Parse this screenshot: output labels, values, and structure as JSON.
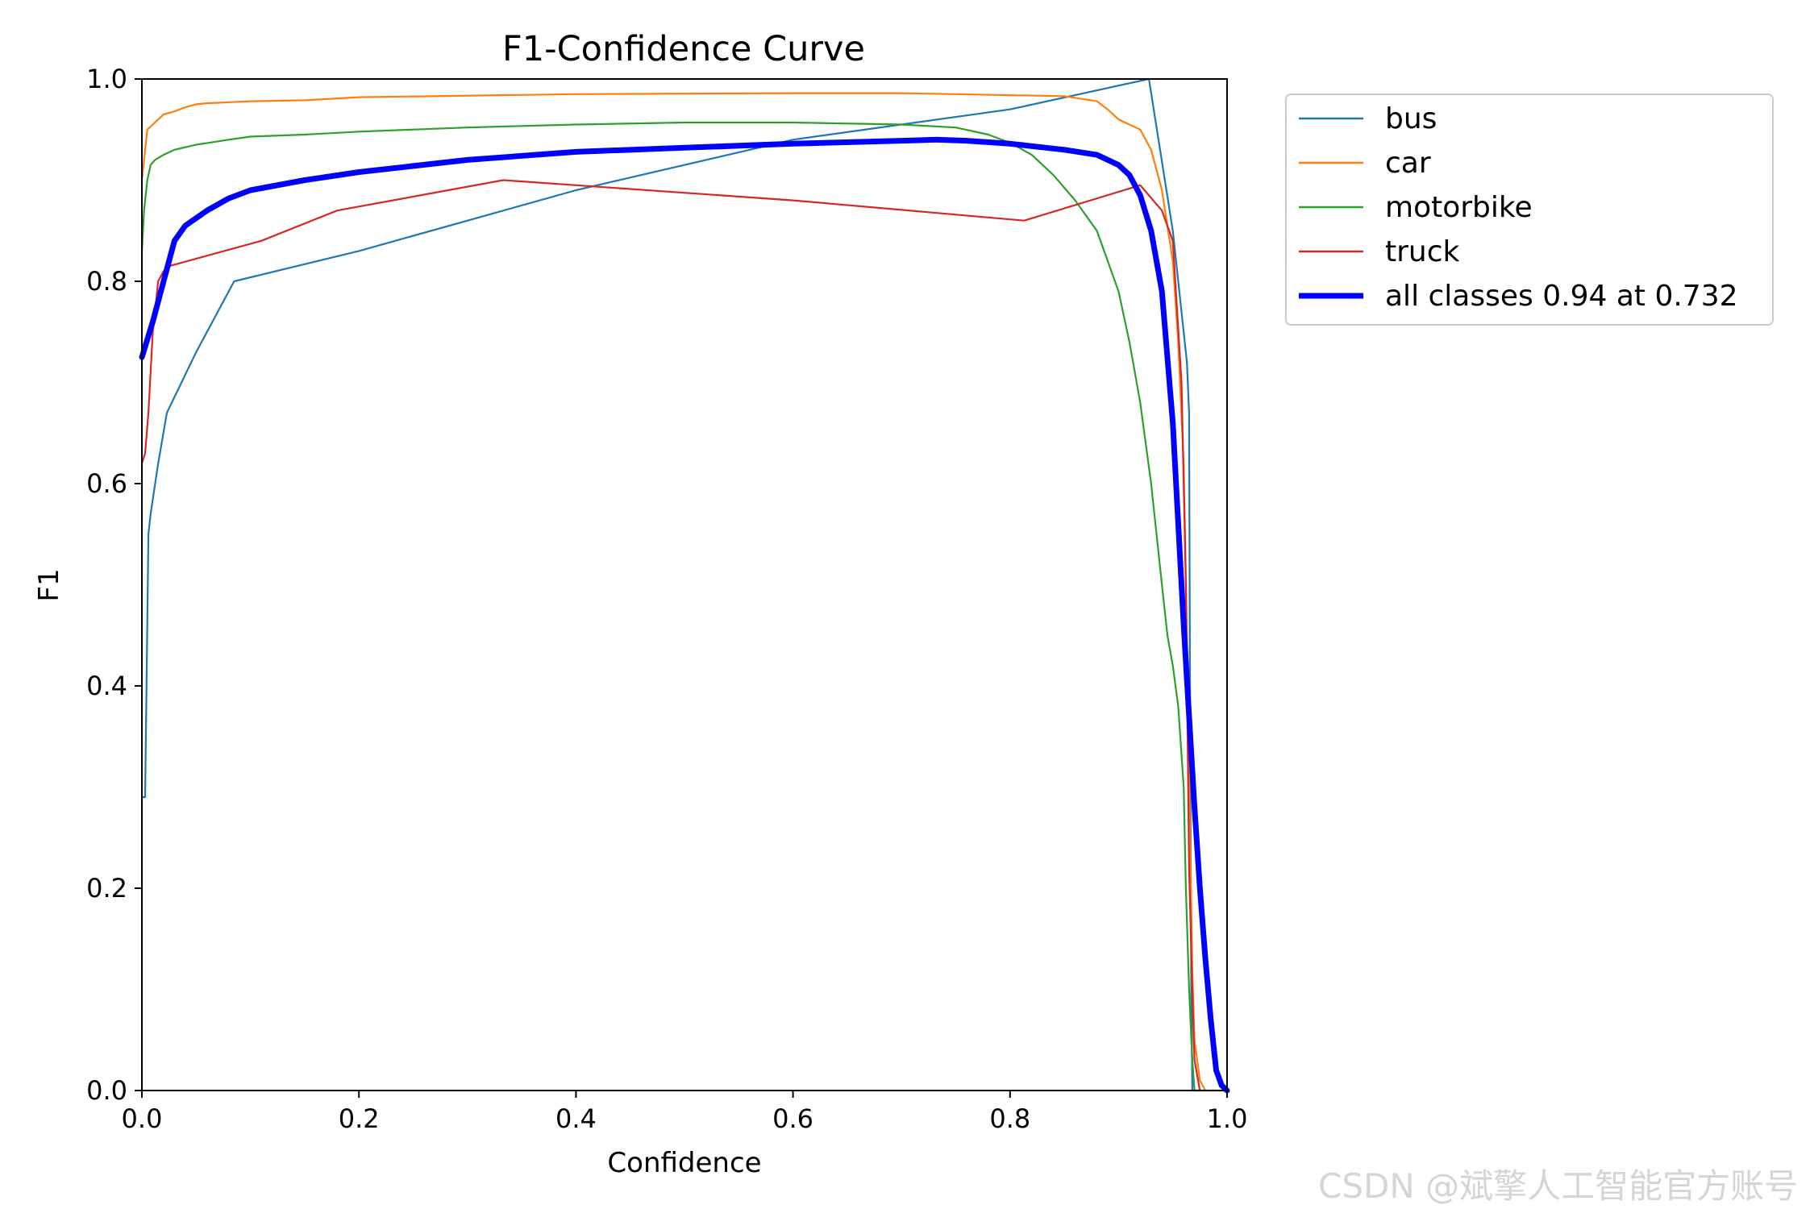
{
  "watermark": "CSDN @斌擎人工智能官方账号",
  "chart_data": {
    "type": "line",
    "title": "F1-Confidence Curve",
    "xlabel": "Confidence",
    "ylabel": "F1",
    "xlim": [
      0.0,
      1.0
    ],
    "ylim": [
      0.0,
      1.0
    ],
    "xticks": [
      "0.0",
      "0.2",
      "0.4",
      "0.6",
      "0.8",
      "1.0"
    ],
    "yticks": [
      "0.0",
      "0.2",
      "0.4",
      "0.6",
      "0.8",
      "1.0"
    ],
    "grid": false,
    "legend_position": "outside-top-right",
    "series": [
      {
        "name": "bus",
        "color": "#1f77b4",
        "width": "thin",
        "x": [
          0.0,
          0.003,
          0.006,
          0.008,
          0.015,
          0.023,
          0.05,
          0.085,
          0.2,
          0.4,
          0.6,
          0.8,
          0.928,
          0.95,
          0.963,
          0.965,
          0.966,
          0.967,
          0.968,
          0.98
        ],
        "y": [
          0.29,
          0.29,
          0.55,
          0.57,
          0.62,
          0.67,
          0.73,
          0.8,
          0.83,
          0.89,
          0.94,
          0.97,
          1.0,
          0.85,
          0.72,
          0.67,
          0.35,
          0.1,
          0.0,
          0.0
        ]
      },
      {
        "name": "car",
        "color": "#ff7f0e",
        "width": "thin",
        "x": [
          0.0,
          0.005,
          0.01,
          0.015,
          0.02,
          0.03,
          0.04,
          0.05,
          0.06,
          0.1,
          0.15,
          0.2,
          0.4,
          0.6,
          0.7,
          0.75,
          0.8,
          0.85,
          0.88,
          0.89,
          0.9,
          0.92,
          0.93,
          0.94,
          0.95,
          0.955,
          0.96,
          0.963,
          0.966,
          0.968,
          0.97,
          0.975,
          0.98,
          1.0
        ],
        "y": [
          0.9,
          0.95,
          0.955,
          0.96,
          0.965,
          0.968,
          0.972,
          0.975,
          0.976,
          0.978,
          0.979,
          0.982,
          0.985,
          0.986,
          0.986,
          0.985,
          0.984,
          0.983,
          0.978,
          0.97,
          0.96,
          0.95,
          0.93,
          0.89,
          0.82,
          0.74,
          0.62,
          0.45,
          0.25,
          0.12,
          0.05,
          0.01,
          0.0,
          0.0
        ]
      },
      {
        "name": "motorbike",
        "color": "#2ca02c",
        "width": "thin",
        "x": [
          0.0,
          0.002,
          0.005,
          0.008,
          0.012,
          0.02,
          0.03,
          0.05,
          0.08,
          0.1,
          0.15,
          0.2,
          0.3,
          0.4,
          0.5,
          0.6,
          0.7,
          0.75,
          0.78,
          0.8,
          0.82,
          0.84,
          0.86,
          0.88,
          0.9,
          0.91,
          0.92,
          0.93,
          0.935,
          0.94,
          0.945,
          0.95,
          0.955,
          0.96,
          0.962,
          0.965,
          0.968,
          0.97,
          0.975
        ],
        "y": [
          0.83,
          0.87,
          0.9,
          0.915,
          0.92,
          0.925,
          0.93,
          0.935,
          0.94,
          0.943,
          0.945,
          0.948,
          0.952,
          0.955,
          0.957,
          0.957,
          0.955,
          0.952,
          0.945,
          0.937,
          0.925,
          0.905,
          0.88,
          0.85,
          0.79,
          0.74,
          0.68,
          0.6,
          0.55,
          0.5,
          0.45,
          0.42,
          0.38,
          0.3,
          0.2,
          0.1,
          0.03,
          0.0,
          0.0
        ]
      },
      {
        "name": "truck",
        "color": "#d62728",
        "width": "thin",
        "x": [
          0.0,
          0.003,
          0.006,
          0.01,
          0.015,
          0.02,
          0.025,
          0.11,
          0.18,
          0.333,
          0.6,
          0.813,
          0.92,
          0.94,
          0.95,
          0.958,
          0.962,
          0.965,
          0.968,
          0.97,
          0.975
        ],
        "y": [
          0.62,
          0.63,
          0.67,
          0.75,
          0.8,
          0.81,
          0.815,
          0.84,
          0.87,
          0.9,
          0.88,
          0.86,
          0.895,
          0.87,
          0.84,
          0.7,
          0.5,
          0.22,
          0.1,
          0.03,
          0.0
        ]
      },
      {
        "name": "all classes 0.94 at 0.732",
        "color": "#0000ff",
        "width": "thick",
        "x": [
          0.0,
          0.01,
          0.02,
          0.03,
          0.04,
          0.06,
          0.08,
          0.1,
          0.15,
          0.2,
          0.3,
          0.4,
          0.5,
          0.6,
          0.7,
          0.732,
          0.76,
          0.8,
          0.85,
          0.88,
          0.9,
          0.91,
          0.92,
          0.93,
          0.94,
          0.95,
          0.96,
          0.965,
          0.97,
          0.975,
          0.98,
          0.985,
          0.99,
          0.995,
          1.0
        ],
        "y": [
          0.725,
          0.76,
          0.8,
          0.84,
          0.855,
          0.87,
          0.882,
          0.89,
          0.9,
          0.908,
          0.92,
          0.928,
          0.932,
          0.936,
          0.939,
          0.94,
          0.939,
          0.936,
          0.93,
          0.925,
          0.915,
          0.905,
          0.885,
          0.85,
          0.79,
          0.66,
          0.46,
          0.37,
          0.28,
          0.2,
          0.13,
          0.07,
          0.02,
          0.005,
          0.0
        ]
      }
    ]
  }
}
